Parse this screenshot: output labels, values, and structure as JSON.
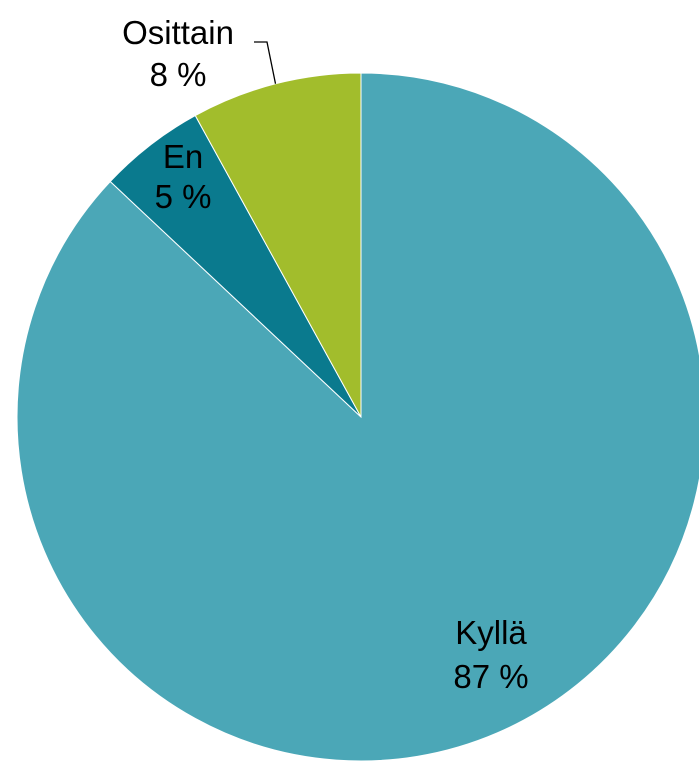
{
  "chart_data": {
    "type": "pie",
    "slices": [
      {
        "label": "Kyllä",
        "value": 87,
        "value_label": "87 %",
        "color": "#4ba7b7"
      },
      {
        "label": "En",
        "value": 5,
        "value_label": "5 %",
        "color": "#0a7a8e"
      },
      {
        "label": "Osittain",
        "value": 8,
        "value_label": "8 %",
        "color": "#a2bd2c"
      }
    ],
    "start": "12 o'clock, clockwise",
    "legend": "none (data labels on slices)"
  }
}
